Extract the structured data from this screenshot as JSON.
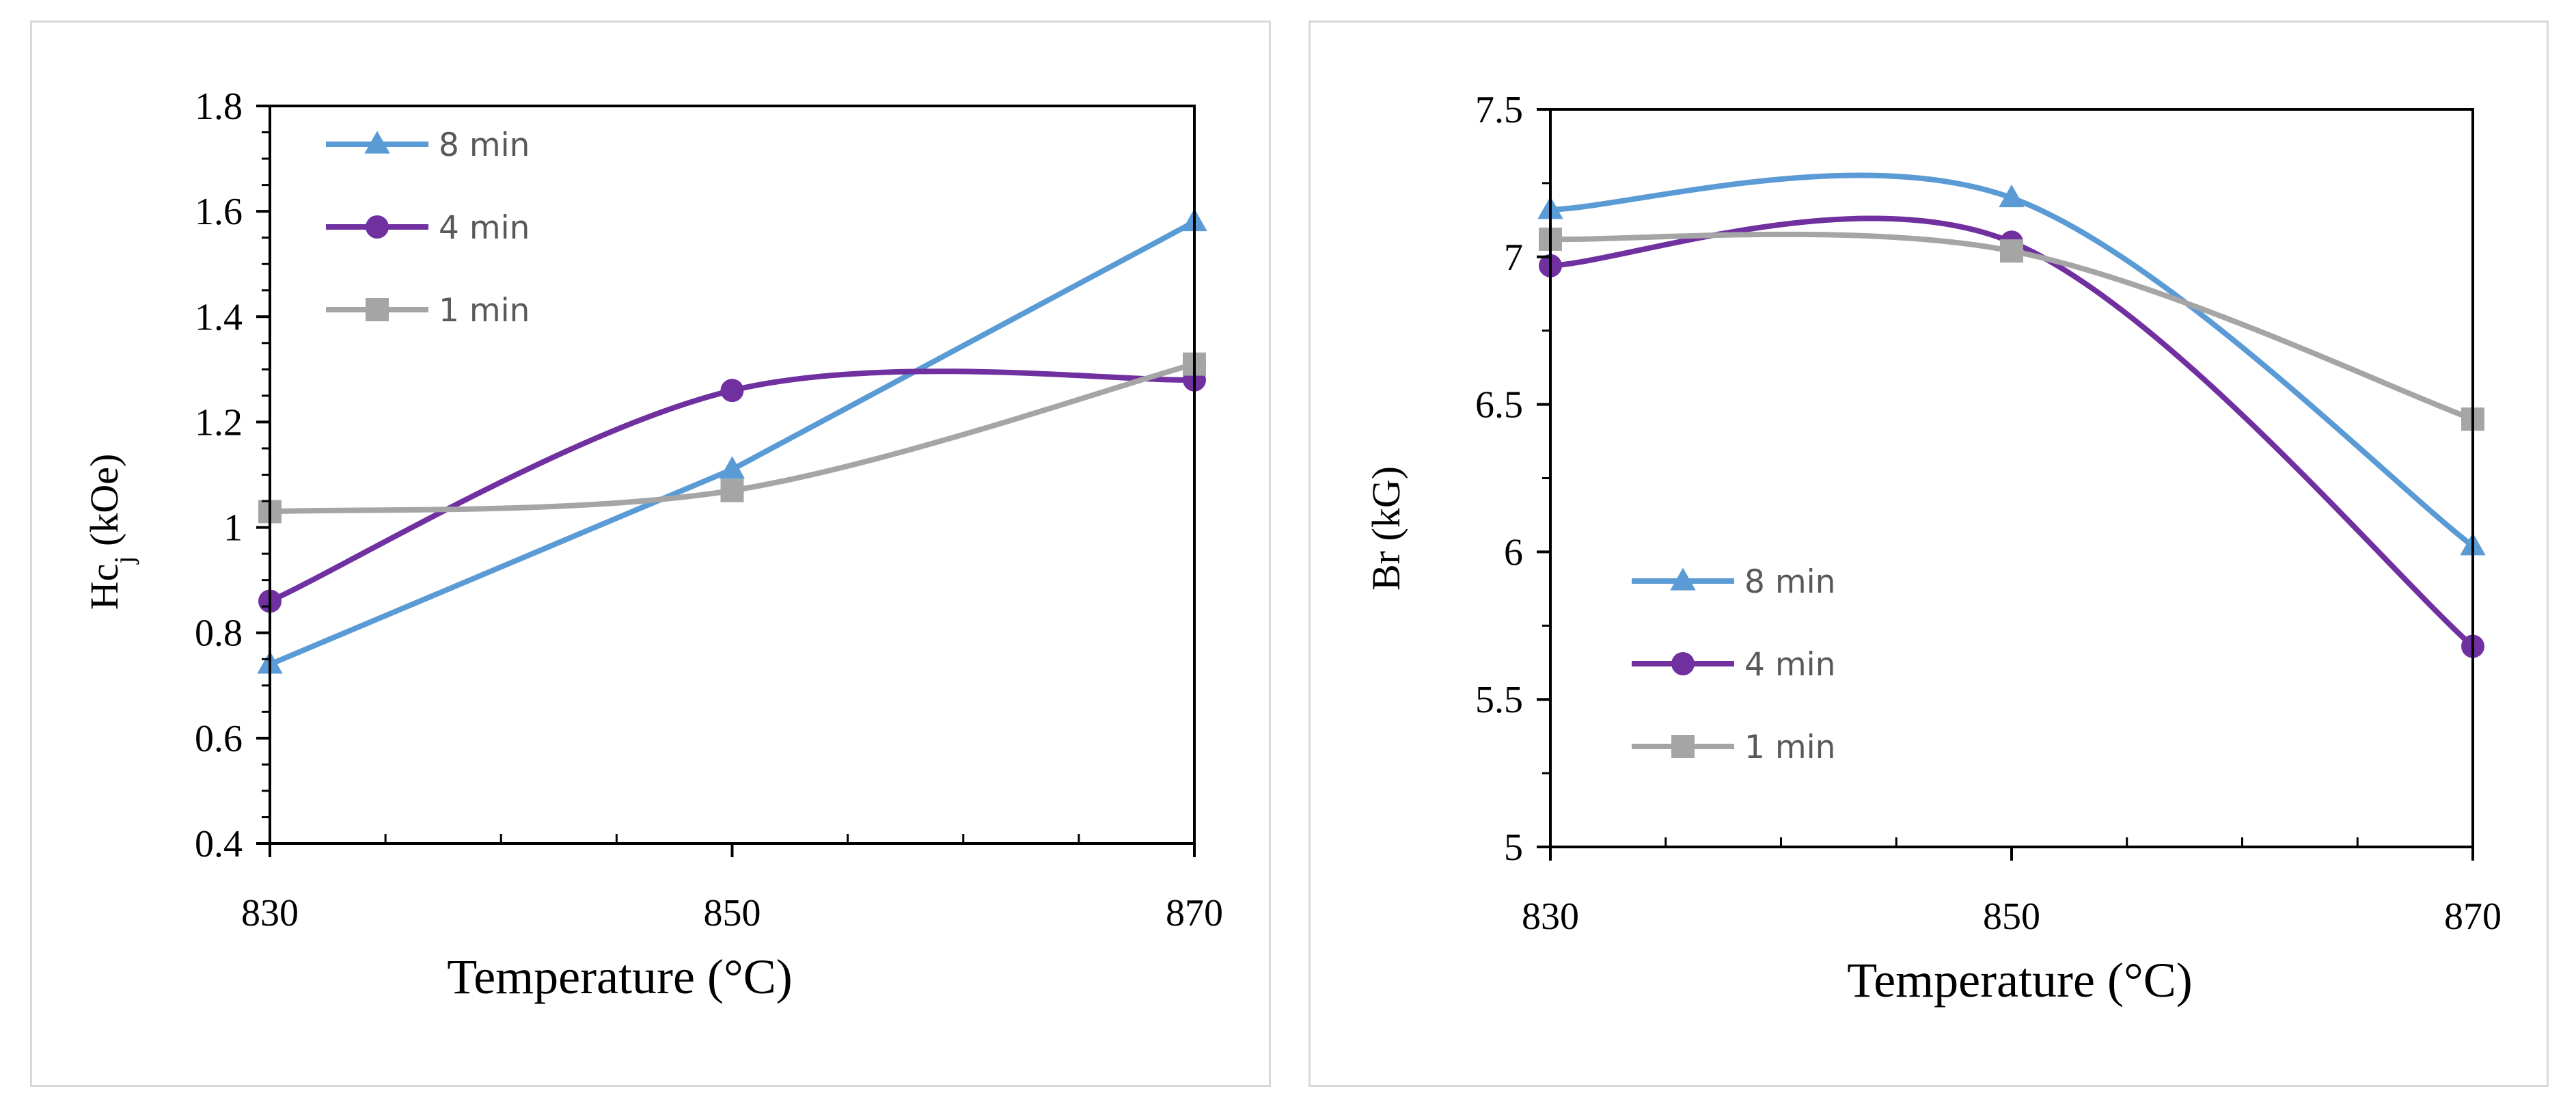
{
  "chart_data": [
    {
      "type": "line",
      "smooth": true,
      "x": [
        830,
        850,
        870
      ],
      "xlim": [
        830,
        870
      ],
      "xticks": [
        "830",
        "850",
        "870"
      ],
      "ylim": [
        0.4,
        1.8
      ],
      "yticks": [
        "0.4",
        "0.6",
        "0.8",
        "1",
        "1.2",
        "1.4",
        "1.6",
        "1.8"
      ],
      "xlabel": "Temperature (°C)",
      "ylabel_main": "Hc",
      "ylabel_sub": "j",
      "ylabel_rest": " (kOe)",
      "legend_position": "top-left",
      "series": [
        {
          "name": "8 min",
          "marker": "triangle",
          "color": "#5b9bd5",
          "smooth": false,
          "values": [
            0.74,
            1.11,
            1.58
          ]
        },
        {
          "name": "4 min",
          "marker": "circle",
          "color": "#7030a0",
          "smooth": true,
          "values": [
            0.86,
            1.26,
            1.28
          ]
        },
        {
          "name": "1 min",
          "marker": "square",
          "color": "#a5a5a5",
          "smooth": true,
          "values": [
            1.03,
            1.07,
            1.31
          ]
        }
      ]
    },
    {
      "type": "line",
      "smooth": true,
      "x": [
        830,
        850,
        870
      ],
      "xlim": [
        830,
        870
      ],
      "xticks": [
        "830",
        "850",
        "870"
      ],
      "ylim": [
        5,
        7.5
      ],
      "yticks": [
        "5",
        "5.5",
        "6",
        "6.5",
        "7",
        "7.5"
      ],
      "xlabel": "Temperature (°C)",
      "ylabel": "Br (kG)",
      "legend_position": "bottom-left",
      "series": [
        {
          "name": "8 min",
          "marker": "triangle",
          "color": "#5b9bd5",
          "smooth": true,
          "values": [
            7.16,
            7.2,
            6.02
          ]
        },
        {
          "name": "4 min",
          "marker": "circle",
          "color": "#7030a0",
          "smooth": true,
          "values": [
            6.97,
            7.05,
            5.68
          ]
        },
        {
          "name": "1 min",
          "marker": "square",
          "color": "#a5a5a5",
          "smooth": true,
          "values": [
            7.06,
            7.02,
            6.45
          ]
        }
      ]
    }
  ]
}
